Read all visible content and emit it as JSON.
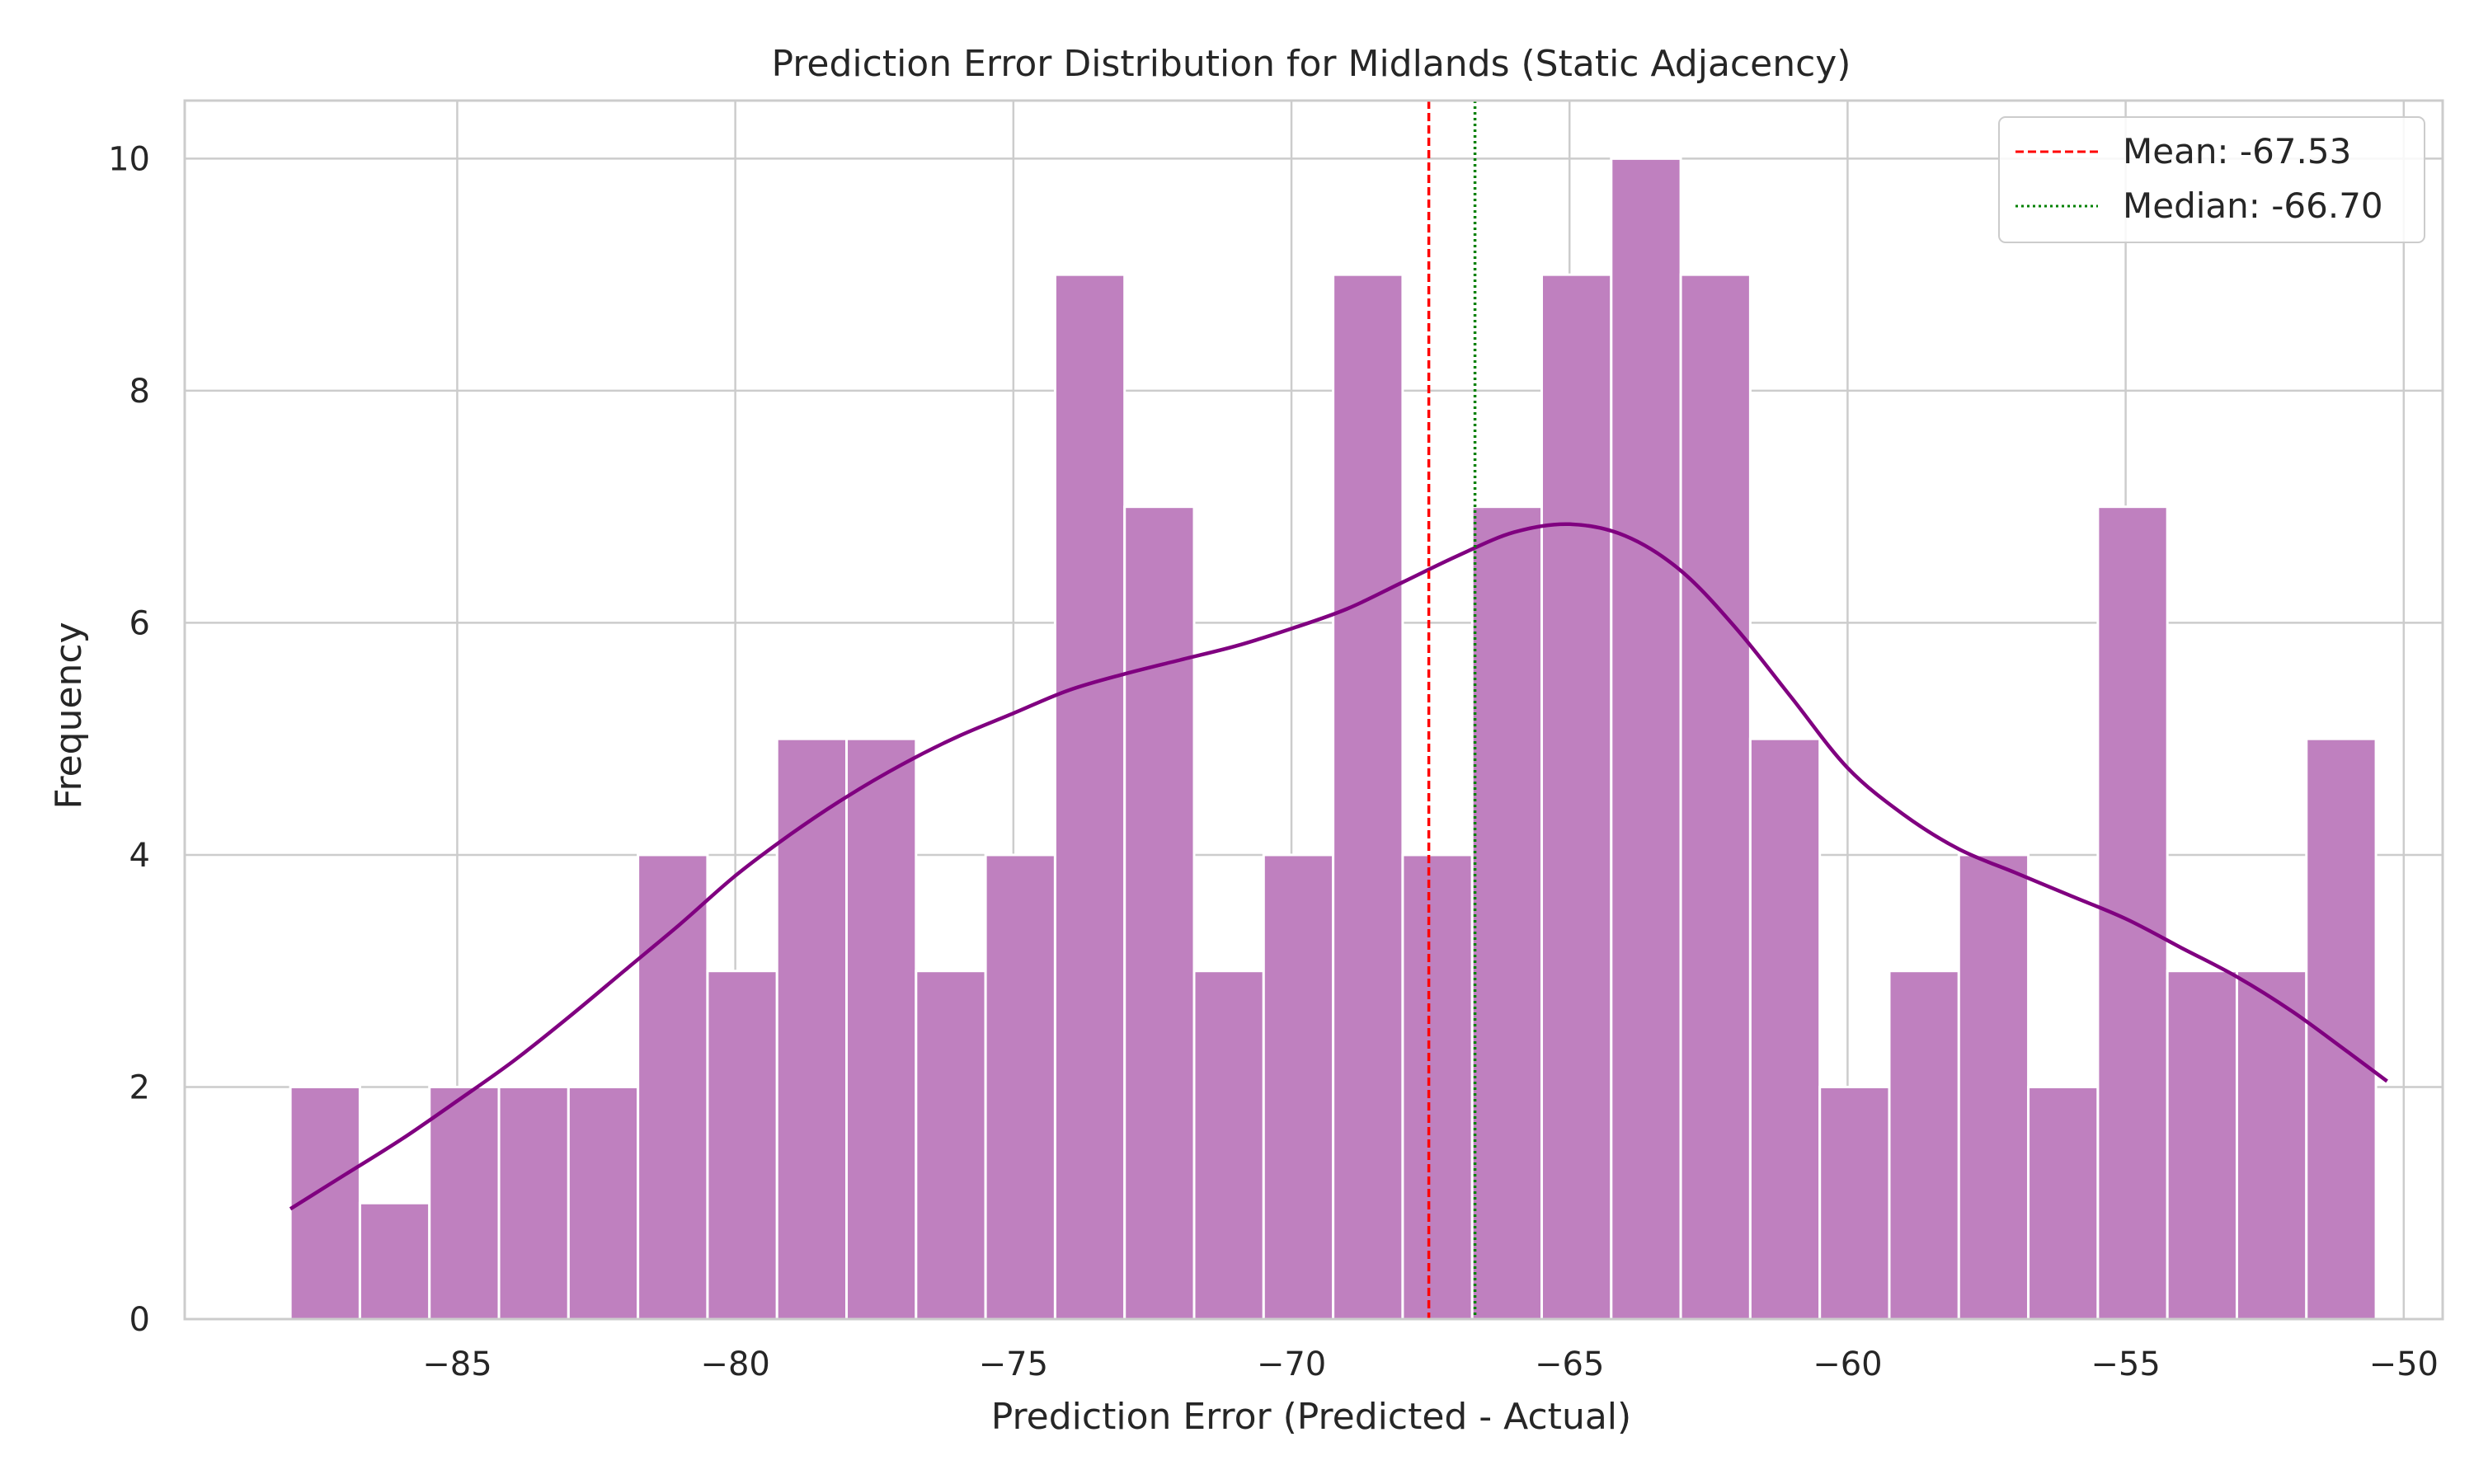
{
  "chart_data": {
    "type": "bar",
    "title": "Prediction Error Distribution for Midlands (Static Adjacency)",
    "xlabel": "Prediction Error (Predicted - Actual)",
    "ylabel": "Frequency",
    "xlim": [
      -89.9,
      -49.3
    ],
    "ylim": [
      0,
      10.5
    ],
    "xticks": [
      -85,
      -80,
      -75,
      -70,
      -65,
      -60,
      -55,
      -50
    ],
    "xtick_labels": [
      "−85",
      "−80",
      "−75",
      "−70",
      "−65",
      "−60",
      "−55",
      "−50"
    ],
    "yticks": [
      0,
      2,
      4,
      6,
      8,
      10
    ],
    "ytick_labels": [
      "0",
      "2",
      "4",
      "6",
      "8",
      "10"
    ],
    "grid": true,
    "bins": {
      "start": -88.0,
      "width": 1.25,
      "counts": [
        2,
        1,
        2,
        2,
        2,
        4,
        3,
        5,
        5,
        3,
        4,
        9,
        7,
        3,
        4,
        9,
        4,
        7,
        9,
        10,
        9,
        5,
        2,
        3,
        4,
        2,
        7,
        3,
        3,
        5
      ]
    },
    "kde": {
      "x": [
        -88.0,
        -87.0,
        -86.0,
        -85.0,
        -84.0,
        -83.0,
        -82.0,
        -81.0,
        -80.0,
        -79.0,
        -78.0,
        -77.0,
        -76.0,
        -75.0,
        -74.0,
        -73.0,
        -72.0,
        -71.0,
        -70.0,
        -69.0,
        -68.0,
        -67.0,
        -66.0,
        -65.0,
        -64.0,
        -63.0,
        -62.0,
        -61.0,
        -60.0,
        -59.0,
        -58.0,
        -57.0,
        -56.0,
        -55.0,
        -54.0,
        -53.0,
        -52.0,
        -51.0,
        -50.3
      ],
      "y": [
        0.95,
        1.25,
        1.55,
        1.88,
        2.22,
        2.6,
        3.0,
        3.4,
        3.82,
        4.18,
        4.5,
        4.78,
        5.02,
        5.22,
        5.42,
        5.56,
        5.68,
        5.8,
        5.95,
        6.12,
        6.35,
        6.58,
        6.78,
        6.85,
        6.75,
        6.45,
        5.95,
        5.35,
        4.75,
        4.35,
        4.05,
        3.85,
        3.65,
        3.45,
        3.2,
        2.95,
        2.65,
        2.3,
        2.05
      ],
      "color": "#800080"
    },
    "bar_color": "#bf80bf",
    "lines": [
      {
        "label": "Mean: -67.53",
        "value": -67.53,
        "color": "#ff0000",
        "style": "dashed"
      },
      {
        "label": "Median: -66.70",
        "value": -66.7,
        "color": "#008000",
        "style": "dotted"
      }
    ],
    "legend_position": "top-right"
  }
}
